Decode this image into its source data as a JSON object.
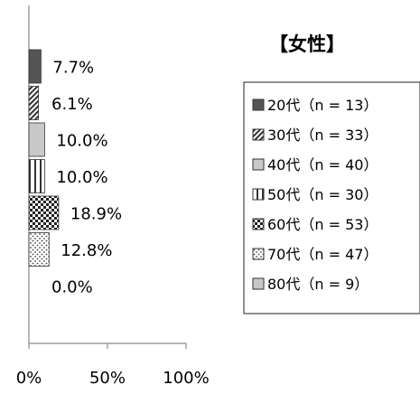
{
  "chart_data": {
    "type": "bar",
    "orientation": "horizontal",
    "title": "【女性】",
    "xlabel": "",
    "ylabel": "",
    "xlim": [
      0,
      100
    ],
    "x_ticks": [
      "0%",
      "50%",
      "100%"
    ],
    "grid": false,
    "legend_position": "right",
    "categories": [
      "20代（n = 13）",
      "30代（n = 33）",
      "40代（n = 40）",
      "50代（n = 30）",
      "60代（n = 53）",
      "70代（n = 47）",
      "80代（n = 9）"
    ],
    "values": [
      7.7,
      6.1,
      10.0,
      10.0,
      18.9,
      12.8,
      0.0
    ],
    "value_labels": [
      "7.7%",
      "6.1%",
      "10.0%",
      "10.0%",
      "18.9%",
      "12.8%",
      "0.0%"
    ],
    "legend": {
      "items": [
        {
          "label": "20代（n = 13）",
          "pattern": "dark-solid"
        },
        {
          "label": "30代（n = 33）",
          "pattern": "diagonal-stripes"
        },
        {
          "label": "40代（n = 40）",
          "pattern": "light-gray"
        },
        {
          "label": "50代（n = 30）",
          "pattern": "vertical-stripes"
        },
        {
          "label": "60代（n = 53）",
          "pattern": "checker"
        },
        {
          "label": "70代（n = 47）",
          "pattern": "dots"
        },
        {
          "label": "80代（n =  9）",
          "pattern": "light-gray"
        }
      ]
    },
    "colors": {
      "dark": "#555555",
      "light": "#c8c8c8",
      "stroke": "#333333",
      "axis": "#888888"
    }
  }
}
